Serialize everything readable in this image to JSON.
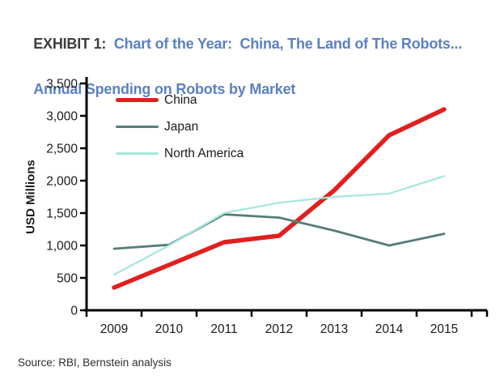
{
  "header": {
    "exhibit_label": "EXHIBIT 1:",
    "title_line1": "  Chart of the Year:  China, The Land of The Robots...",
    "title_line2": "Annual Spending on Robots by Market",
    "title_accent_color": "#5b80c1"
  },
  "chart_data": {
    "type": "line",
    "title": "Chart of the Year: China, The Land of The Robots... Annual Spending on Robots by Market",
    "categories": [
      "2009",
      "2010",
      "2011",
      "2012",
      "2013",
      "2014",
      "2015"
    ],
    "series": [
      {
        "name": "China",
        "color": "#e11f1f",
        "line_width": 5.5,
        "values": [
          350,
          700,
          1050,
          1150,
          1850,
          2700,
          3100
        ]
      },
      {
        "name": "Japan",
        "color": "#547d77",
        "line_width": 2.8,
        "values": [
          950,
          1010,
          1480,
          1430,
          1230,
          1000,
          1180
        ]
      },
      {
        "name": "North America",
        "color": "#a6e6df",
        "line_width": 2.2,
        "values": [
          550,
          1000,
          1500,
          1660,
          1750,
          1800,
          2070
        ]
      }
    ],
    "xlabel": "",
    "ylabel": "USD Millions",
    "ylim": [
      0,
      3500
    ],
    "ytick_step": 500,
    "grid": false,
    "legend_position": "top-left",
    "axis_color": "#000000"
  },
  "footer": {
    "source": "Source: RBI, Bernstein analysis"
  }
}
